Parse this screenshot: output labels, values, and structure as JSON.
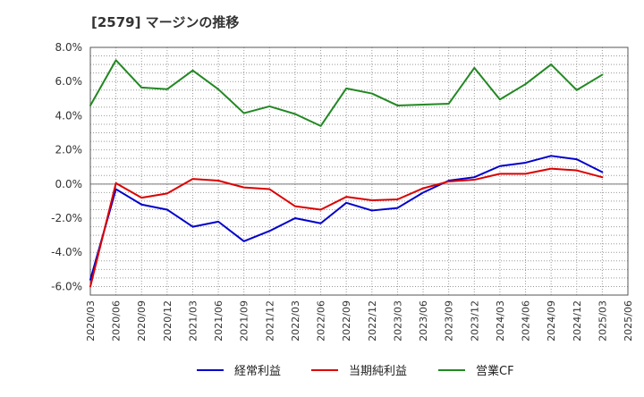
{
  "chart_data": {
    "type": "line",
    "title": "[2579]  マージンの推移",
    "xlabel": "",
    "ylabel": "",
    "categories": [
      "2020/03",
      "2020/06",
      "2020/09",
      "2020/12",
      "2021/03",
      "2021/06",
      "2021/09",
      "2021/12",
      "2022/03",
      "2022/06",
      "2022/09",
      "2022/12",
      "2023/03",
      "2023/06",
      "2023/09",
      "2023/12",
      "2024/03",
      "2024/06",
      "2024/09",
      "2024/12",
      "2025/03",
      "2025/06"
    ],
    "yticks": [
      "8.0%",
      "6.0%",
      "4.0%",
      "2.0%",
      "0.0%",
      "-2.0%",
      "-4.0%",
      "-6.0%"
    ],
    "ylim": [
      -6.5,
      8.0
    ],
    "grid": true,
    "legend_position": "bottom",
    "series": [
      {
        "name": "経常利益",
        "color": "#0000cc",
        "values": [
          -5.6,
          -0.3,
          -1.2,
          -1.5,
          -2.5,
          -2.2,
          -3.35,
          -2.75,
          -2.0,
          -2.3,
          -1.1,
          -1.55,
          -1.4,
          -0.5,
          0.2,
          0.4,
          1.05,
          1.25,
          1.65,
          1.45,
          0.7,
          null
        ]
      },
      {
        "name": "当期純利益",
        "color": "#dd0000",
        "values": [
          -6.0,
          0.05,
          -0.8,
          -0.55,
          0.3,
          0.2,
          -0.2,
          -0.3,
          -1.3,
          -1.5,
          -0.75,
          -0.95,
          -0.9,
          -0.25,
          0.15,
          0.25,
          0.6,
          0.6,
          0.9,
          0.8,
          0.4,
          null
        ]
      },
      {
        "name": "営業CF",
        "color": "#228822",
        "values": [
          4.6,
          7.25,
          5.65,
          5.55,
          6.65,
          5.55,
          4.15,
          4.55,
          4.1,
          3.4,
          5.6,
          5.3,
          4.6,
          4.65,
          4.7,
          6.8,
          4.95,
          5.85,
          7.0,
          5.5,
          6.4,
          null
        ]
      }
    ]
  }
}
